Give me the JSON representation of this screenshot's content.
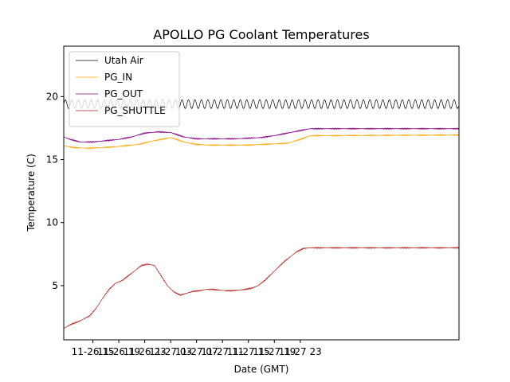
{
  "chart_data": {
    "type": "line",
    "title": "APOLLO PG Coolant Temperatures",
    "xlabel": "Date (GMT)",
    "ylabel": "Temperature (C)",
    "x_unit": "hours since 11-26 00:00 GMT",
    "xlim": [
      10.5,
      71.5
    ],
    "ylim": [
      0.7,
      24.0
    ],
    "grid": false,
    "legend_position": "upper-left",
    "x_ticks": [
      {
        "value": 15,
        "label": "11-26 15"
      },
      {
        "value": 19,
        "label": "11-26 19"
      },
      {
        "value": 23,
        "label": "11-26 23"
      },
      {
        "value": 27,
        "label": "11-27 03"
      },
      {
        "value": 31,
        "label": "11-27 07"
      },
      {
        "value": 35,
        "label": "11-27 11"
      },
      {
        "value": 39,
        "label": "11-27 15"
      },
      {
        "value": 43,
        "label": "11-27 19"
      },
      {
        "value": 47,
        "label": "11-27 23"
      }
    ],
    "y_ticks": [
      {
        "value": 5,
        "label": "5"
      },
      {
        "value": 10,
        "label": "10"
      },
      {
        "value": 15,
        "label": "15"
      },
      {
        "value": 20,
        "label": "20"
      }
    ],
    "series": [
      {
        "name": "Utah Air",
        "color": "#000000",
        "oscillation": {
          "center": 19.4,
          "amplitude": 0.35,
          "period_hours": 1.0
        },
        "x": [
          10.5,
          71.5
        ],
        "y": [
          19.4,
          19.4
        ]
      },
      {
        "name": "PG_IN",
        "color": "#ffa500",
        "x": [
          10.5,
          12,
          14,
          16,
          18,
          20,
          22,
          24,
          26,
          27,
          29,
          31,
          33,
          35,
          37,
          39,
          41,
          43,
          45,
          47,
          48.5,
          71.5
        ],
        "y": [
          16.1,
          15.95,
          15.9,
          15.95,
          16.0,
          16.1,
          16.2,
          16.45,
          16.65,
          16.75,
          16.4,
          16.2,
          16.15,
          16.15,
          16.15,
          16.15,
          16.2,
          16.25,
          16.3,
          16.6,
          16.9,
          16.95
        ]
      },
      {
        "name": "PG_OUT",
        "color": "#800080",
        "x": [
          10.5,
          11.5,
          13,
          15,
          17,
          19,
          21,
          23,
          25,
          27,
          29,
          31,
          33,
          35,
          37,
          39,
          41,
          43,
          45,
          47,
          48.5,
          71.5
        ],
        "y": [
          16.8,
          16.6,
          16.4,
          16.4,
          16.5,
          16.6,
          16.8,
          17.1,
          17.2,
          17.15,
          16.8,
          16.65,
          16.65,
          16.65,
          16.65,
          16.7,
          16.75,
          16.9,
          17.1,
          17.3,
          17.45,
          17.45
        ]
      },
      {
        "name": "PG_SHUTTLE",
        "color": "#b22222",
        "x": [
          10.5,
          11.5,
          13,
          14.5,
          15.5,
          16.5,
          17.5,
          18.5,
          19.5,
          20.5,
          21.5,
          22.5,
          23.5,
          24.5,
          25.5,
          26.5,
          27.5,
          28.5,
          29.5,
          30.5,
          31.5,
          32.5,
          33.5,
          34.5,
          35.5,
          36.5,
          37.5,
          38.5,
          39.5,
          40.5,
          41.5,
          42.5,
          43.5,
          44.5,
          45.5,
          46.5,
          47.5,
          48.5,
          71.5
        ],
        "y": [
          1.6,
          1.9,
          2.2,
          2.6,
          3.2,
          4.0,
          4.7,
          5.2,
          5.4,
          5.8,
          6.2,
          6.6,
          6.7,
          6.6,
          5.8,
          5.0,
          4.5,
          4.25,
          4.4,
          4.55,
          4.6,
          4.7,
          4.7,
          4.65,
          4.6,
          4.6,
          4.65,
          4.7,
          4.8,
          5.0,
          5.4,
          5.9,
          6.4,
          6.9,
          7.3,
          7.7,
          7.95,
          8.0,
          8.0
        ]
      }
    ]
  }
}
